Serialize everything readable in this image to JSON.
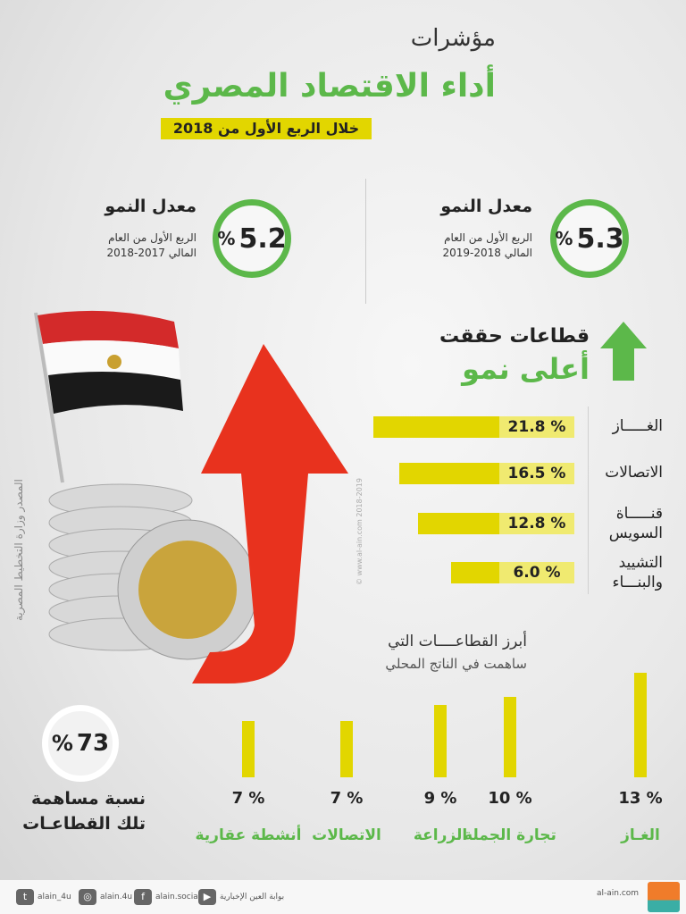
{
  "header": {
    "line1": "مؤشرات",
    "line2": "أداء الاقتصاد المصري",
    "period": "خلال الربع الأول من 2018"
  },
  "growth": [
    {
      "title": "معدل النمو",
      "sub1": "الربع الأول من العام",
      "sub2": "المالي 2018-2019",
      "value": "5.3",
      "unit": "%"
    },
    {
      "title": "معدل النمو",
      "sub1": "الربع الأول من العام",
      "sub2": "المالي 2017-2018",
      "value": "5.2",
      "unit": "%"
    }
  ],
  "sectors_heading": {
    "line1": "قطاعات حققت",
    "line2": "أعلى نمو"
  },
  "contrib_heading": {
    "line1": "أبرز القطاعــــات التي",
    "line2": "ساهمت في الناتج المحلي"
  },
  "share": {
    "value": "73",
    "unit": "%",
    "line1": "نسبة مساهمة",
    "line2": "تلك القطاعـات"
  },
  "source": "المصدر وزارة التخطيط المصرية",
  "watermark": "© www.al-ain.com 2018-2019",
  "colors": {
    "green": "#5cb84a",
    "yellow": "#e2d600",
    "red": "#e8321e"
  },
  "footer": {
    "site": "al-ain.com",
    "portal": "بوابة العين الإخبارية",
    "facebook": "alain.social",
    "instagram": "alain.4u",
    "twitter": "alain_4u",
    "logo_text": "العين الإخبارية"
  },
  "chart_data": [
    {
      "type": "bar",
      "orientation": "horizontal",
      "title": "قطاعات حققت أعلى نمو",
      "categories": [
        "الغـــــاز",
        "الاتصالات",
        "قنـــــاة السويس",
        "التشييد والبنـــاء"
      ],
      "values": [
        21.8,
        16.5,
        12.8,
        6.0
      ],
      "labels": [
        "% 21.8",
        "% 16.5",
        "% 12.8",
        "% 6.0"
      ]
    },
    {
      "type": "bar",
      "orientation": "vertical",
      "title": "أبرز القطاعات التي ساهمت في الناتج المحلي",
      "categories": [
        "الغـاز",
        "تجارة الجملة",
        "الزراعة",
        "الاتصالات",
        "أنشطة عقارية"
      ],
      "values": [
        13,
        10,
        9,
        7,
        7
      ],
      "labels": [
        "% 13",
        "% 10",
        "% 9",
        "% 7",
        "% 7"
      ]
    }
  ]
}
